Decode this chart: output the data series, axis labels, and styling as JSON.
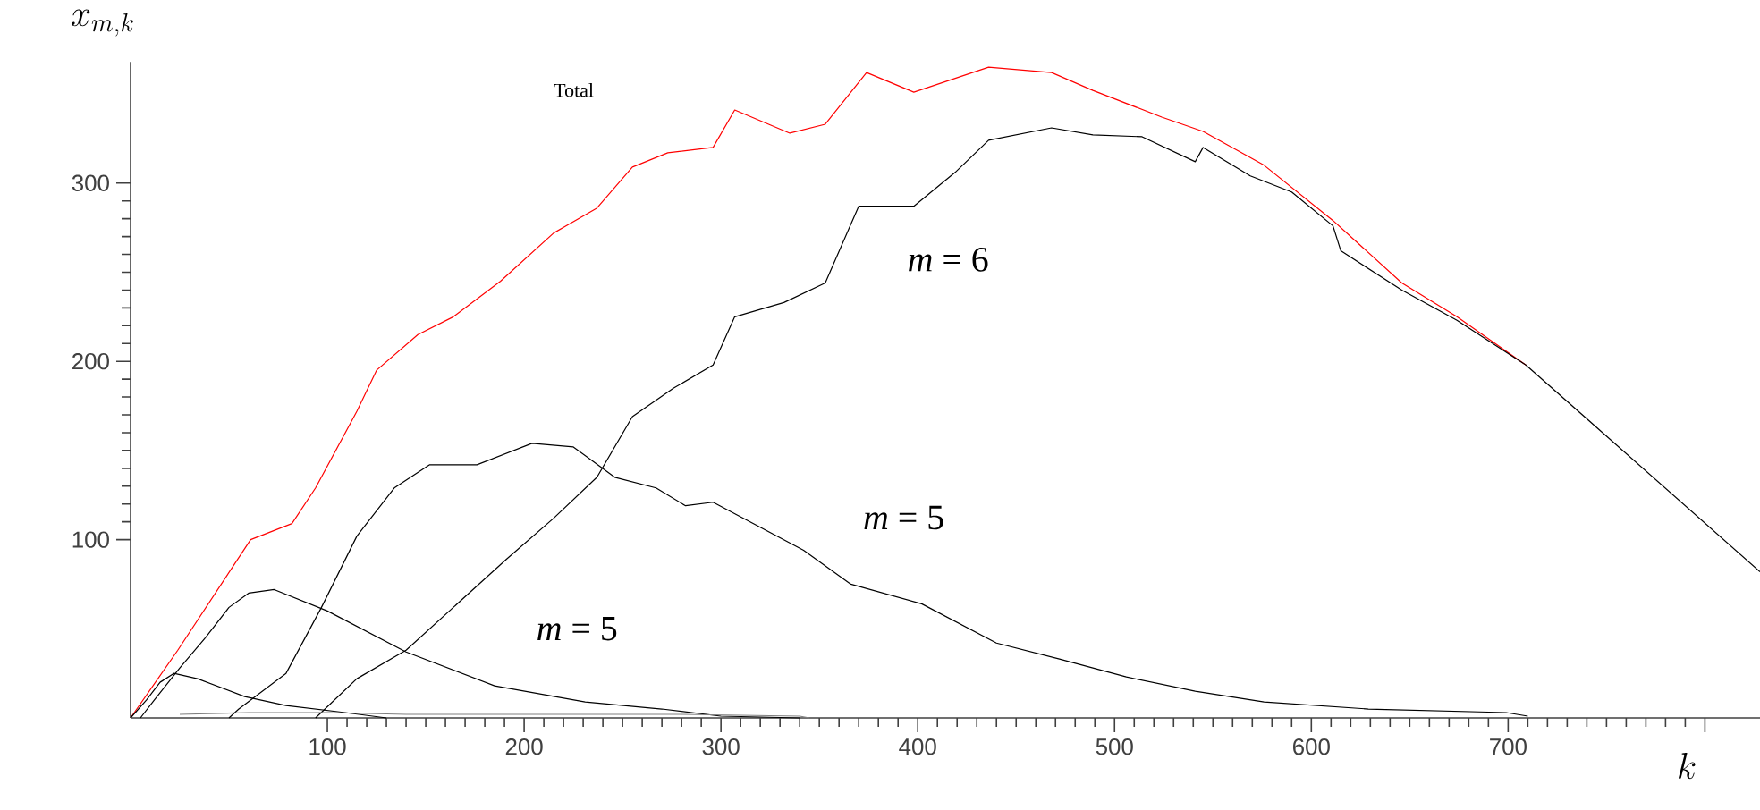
{
  "chart_data": {
    "type": "line",
    "xlabel": "k",
    "ylabel": "x_{m,k}",
    "xlim": [
      0,
      828
    ],
    "ylim": [
      0,
      368
    ],
    "xticks": [
      100,
      200,
      300,
      400,
      500,
      600,
      700,
      {
        "value": 800,
        "label": null
      }
    ],
    "yticks": [
      100,
      200,
      300
    ],
    "annotations": [
      "Total",
      "*m* = 5"
    ],
    "series": [
      {
        "color": "#ff0000",
        "x": [
          0,
          24,
          61,
          82,
          94,
          115,
          125,
          146,
          164,
          188,
          215,
          237,
          255,
          273,
          296,
          307,
          335,
          353,
          374,
          398,
          436,
          468,
          489,
          524,
          545,
          576,
          611,
          646,
          674,
          709
        ],
        "values": [
          0,
          38,
          100,
          109,
          129,
          172,
          195,
          215,
          225,
          245,
          272,
          286,
          309,
          317,
          320,
          341,
          328,
          333,
          362,
          351,
          365,
          362,
          352,
          337,
          329,
          310,
          279,
          244,
          225,
          198
        ]
      },
      {
        "name": "*m* = 6",
        "color": "#000000",
        "x": [
          94,
          115,
          140,
          164,
          191,
          215,
          237,
          255,
          276,
          296,
          307,
          332,
          353,
          370,
          398,
          419,
          436,
          468,
          489,
          514,
          541,
          545,
          569,
          590,
          611,
          615,
          646,
          674,
          709,
          828
        ],
        "values": [
          0,
          22,
          38,
          62,
          89,
          112,
          135,
          169,
          185,
          198,
          225,
          233,
          244,
          287,
          287,
          306,
          324,
          331,
          327,
          326,
          312,
          320,
          304,
          295,
          276,
          262,
          240,
          223,
          198,
          82
        ]
      },
      {
        "name": "*m* = 5",
        "color": "#000000",
        "x": [
          50,
          55,
          79,
          97,
          115,
          134,
          152,
          176,
          204,
          225,
          246,
          267,
          282,
          296,
          342,
          366,
          402,
          440,
          472,
          506,
          541,
          576,
          629,
          699,
          710
        ],
        "values": [
          0,
          5,
          25,
          62,
          102,
          129,
          142,
          142,
          154,
          152,
          135,
          129,
          119,
          121,
          94,
          75,
          64,
          42,
          33,
          23,
          15,
          9,
          5,
          3,
          1
        ]
      },
      {
        "color": "#000000",
        "x": [
          5,
          12,
          25,
          38,
          50,
          60,
          73,
          100,
          140,
          185,
          231,
          270,
          300,
          340
        ],
        "values": [
          0,
          10,
          28,
          45,
          62,
          70,
          72,
          60,
          37,
          18,
          9,
          5,
          1,
          0
        ]
      },
      {
        "color": "#000000",
        "x": [
          0,
          8,
          15,
          22,
          34,
          58,
          79,
          109,
          130
        ],
        "values": [
          0,
          10,
          20,
          25,
          22,
          12,
          7,
          3,
          0
        ]
      },
      {
        "color": "#808080",
        "x": [
          25,
          60,
          100,
          140,
          200,
          280,
          340,
          345
        ],
        "values": [
          2,
          3,
          3,
          2,
          2,
          2,
          1,
          0
        ]
      }
    ]
  }
}
